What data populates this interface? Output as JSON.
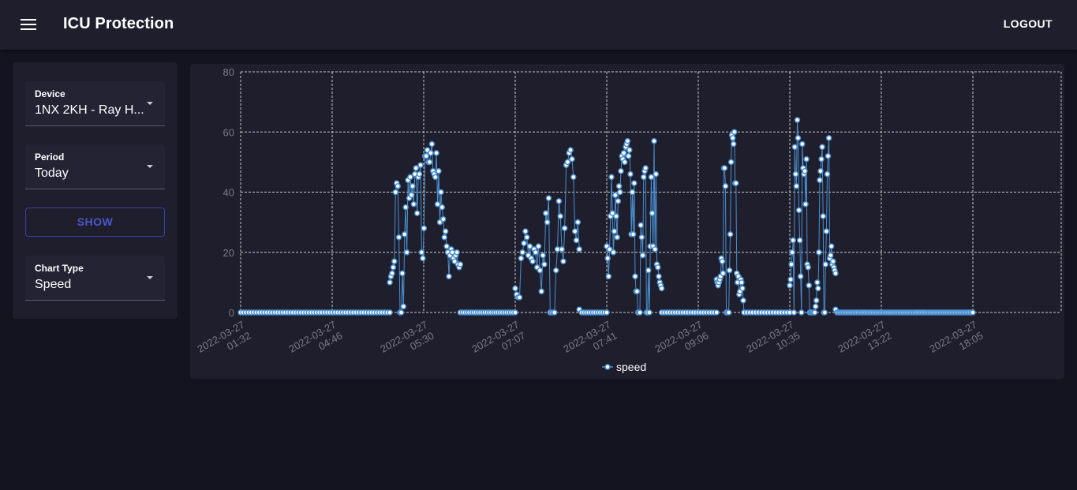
{
  "header": {
    "title": "ICU Protection",
    "logout_label": "LOGOUT"
  },
  "sidebar": {
    "device": {
      "label": "Device",
      "value": "1NX 2KH - Ray H..."
    },
    "period": {
      "label": "Period",
      "value": "Today"
    },
    "show_label": "SHOW",
    "chart_type": {
      "label": "Chart Type",
      "value": "Speed"
    }
  },
  "chart_data": {
    "type": "line",
    "ylim": [
      0,
      80
    ],
    "yticks": [
      0,
      20,
      40,
      60,
      80
    ],
    "x_tick_labels": [
      [
        "2022-03-27",
        "01:32"
      ],
      [
        "2022-03-27",
        "04:46"
      ],
      [
        "2022-03-27",
        "05:30"
      ],
      [
        "2022-03-27",
        "07:07"
      ],
      [
        "2022-03-27",
        "07:41"
      ],
      [
        "2022-03-27",
        "09:06"
      ],
      [
        "2022-03-27",
        "10:35"
      ],
      [
        "2022-03-27",
        "13:22"
      ],
      [
        "2022-03-27",
        "18:05"
      ]
    ],
    "grid": true,
    "legend_position": "bottom-center",
    "series": [
      {
        "name": "speed",
        "color": "#4a8fd0",
        "segments": [
          {
            "start": 0.0,
            "end": 1.63,
            "values": [
              0,
              0,
              0,
              0,
              0,
              0,
              0,
              0,
              0,
              0,
              0,
              0,
              0,
              0,
              0,
              0,
              0,
              0,
              0,
              0,
              0,
              0,
              0,
              0,
              0,
              0,
              0,
              0,
              0,
              0,
              0,
              0,
              0,
              0,
              0,
              0,
              0,
              0,
              0,
              0,
              0,
              0,
              0,
              0,
              0,
              0,
              0,
              0,
              0,
              0,
              0,
              0,
              0,
              0,
              0,
              0,
              0,
              0
            ]
          },
          {
            "start": 1.63,
            "end": 2.4,
            "values": [
              10,
              12,
              13,
              15,
              17,
              40,
              43,
              42,
              25,
              0,
              0,
              13,
              2,
              26,
              35,
              20,
              44,
              38,
              45,
              39,
              42,
              36,
              46,
              48,
              33,
              45,
              46,
              49,
              20,
              18,
              28,
              52,
              52,
              54,
              50,
              50,
              53,
              56,
              47,
              46,
              45,
              53,
              36,
              47,
              30,
              40,
              35,
              31,
              25,
              27,
              22,
              20,
              12,
              19,
              21,
              20,
              18,
              17,
              19,
              20,
              16,
              15,
              16
            ]
          },
          {
            "start": 2.4,
            "end": 3.0,
            "values": [
              0,
              0,
              0,
              0,
              0,
              0,
              0,
              0,
              0,
              0,
              0,
              0,
              0,
              0,
              0,
              0,
              0,
              0,
              0,
              0,
              0,
              0,
              0,
              0,
              0,
              0
            ]
          },
          {
            "start": 3.0,
            "end": 3.7,
            "values": [
              8,
              6,
              5,
              5,
              18,
              20,
              23,
              27,
              25,
              19,
              22,
              18,
              17,
              21,
              20,
              15,
              22,
              14,
              7,
              19,
              16,
              33,
              30,
              38,
              0,
              0,
              0,
              0,
              14,
              21,
              37,
              32,
              21,
              17,
              28,
              49,
              50,
              53,
              54,
              51,
              45,
              27,
              24,
              30,
              21
            ]
          },
          {
            "start": 3.7,
            "end": 4.0,
            "values": [
              1,
              0,
              0,
              0,
              0,
              0,
              0,
              0,
              0,
              0,
              0,
              0,
              0
            ]
          },
          {
            "start": 4.0,
            "end": 4.6,
            "values": [
              22,
              18,
              12,
              21,
              32,
              45,
              33,
              20,
              27,
              39,
              32,
              25,
              37,
              42,
              40,
              47,
              52,
              51,
              53,
              50,
              55,
              56,
              57,
              52,
              54,
              46,
              26,
              40,
              26,
              43,
              12,
              7,
              7,
              0,
              0,
              0,
              29,
              25,
              19,
              45,
              47,
              48,
              0,
              0,
              14,
              0,
              22,
              45,
              33,
              22,
              57,
              21,
              46,
              16,
              15,
              12,
              10,
              9,
              8
            ]
          },
          {
            "start": 4.6,
            "end": 5.2,
            "values": [
              0,
              0,
              0,
              0,
              0,
              0,
              0,
              0,
              0,
              0,
              0,
              0,
              0,
              0,
              0,
              0,
              0,
              0,
              0,
              0,
              0,
              0
            ]
          },
          {
            "start": 5.2,
            "end": 5.5,
            "values": [
              11,
              10,
              9,
              10,
              11,
              12,
              18,
              17,
              13,
              48,
              48,
              42,
              0,
              0,
              0,
              0,
              14,
              26,
              50,
              59,
              58,
              56,
              60,
              43,
              43,
              13,
              10,
              12,
              6,
              7,
              11,
              10,
              8,
              4,
              0
            ]
          },
          {
            "start": 5.5,
            "end": 6.0,
            "values": [
              0,
              0,
              0,
              0,
              0,
              0,
              0,
              0,
              0,
              0,
              0,
              0,
              0,
              0,
              0,
              0,
              0
            ]
          },
          {
            "start": 6.0,
            "end": 6.5,
            "values": [
              9,
              11,
              16,
              20,
              24,
              0,
              55,
              46,
              42,
              64,
              58,
              34,
              24,
              12,
              0,
              56,
              48,
              46,
              47,
              36,
              51,
              16,
              15,
              9,
              0,
              0,
              0,
              0,
              0,
              0,
              0,
              2,
              4,
              10,
              8,
              20,
              44,
              47,
              51,
              55,
              32,
              0,
              0,
              16,
              27,
              46,
              52,
              58,
              18,
              19,
              22,
              16,
              17,
              15,
              14,
              13
            ]
          },
          {
            "start": 6.5,
            "end": 8.0,
            "values": [
              1,
              0,
              0,
              0,
              0,
              0,
              0,
              0,
              0,
              0,
              0,
              0,
              0,
              0,
              0,
              0,
              0,
              0,
              0,
              0,
              0,
              0,
              0,
              0,
              0,
              0,
              0,
              0,
              0,
              0,
              0,
              0,
              0,
              0,
              0,
              0,
              0,
              0,
              0,
              0,
              0,
              0,
              0,
              0,
              0,
              0,
              0,
              0,
              0,
              0,
              0,
              0,
              0,
              0,
              0,
              0,
              0,
              0,
              0,
              0,
              0,
              0,
              0,
              0,
              0,
              0,
              0,
              0,
              0,
              0,
              0,
              0,
              0,
              0,
              0,
              0,
              0,
              0,
              0,
              0,
              0,
              0,
              0,
              0,
              0,
              0,
              0,
              0,
              0,
              0,
              0,
              0,
              0
            ]
          }
        ]
      }
    ]
  }
}
